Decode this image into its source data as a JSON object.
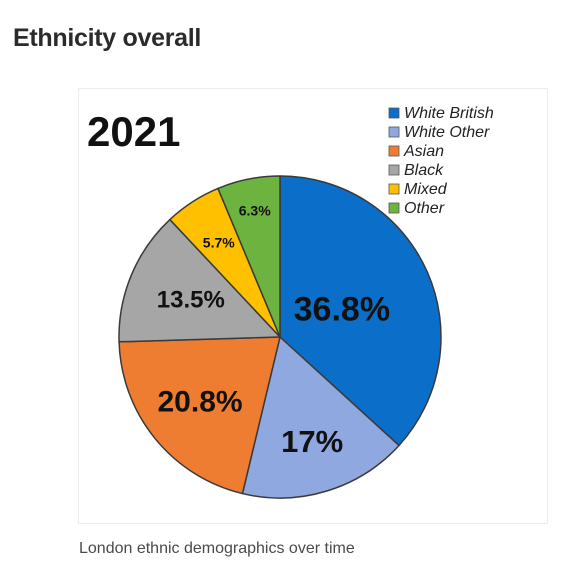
{
  "page": {
    "heading": "Ethnicity overall",
    "caption": "London ethnic demographics over time"
  },
  "chart_data": {
    "type": "pie",
    "title": "2021",
    "legend_position": "top-right",
    "categories": [
      "White British",
      "White Other",
      "Asian",
      "Black",
      "Mixed",
      "Other"
    ],
    "values": [
      36.8,
      17,
      20.8,
      13.5,
      5.7,
      6.3
    ],
    "value_labels": [
      "36.8%",
      "17%",
      "20.8%",
      "13.5%",
      "5.7%",
      "6.3%"
    ],
    "colors": [
      "#0b6fc9",
      "#8fa8e0",
      "#ef7d31",
      "#a6a6a6",
      "#ffc000",
      "#6cb33f"
    ]
  }
}
